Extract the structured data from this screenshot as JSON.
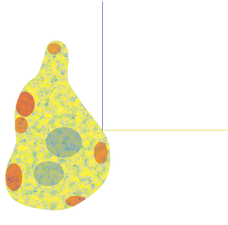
{
  "viewer": {
    "background": "#ffffff",
    "axes": {
      "vertical_axis_color": "#6a6ab8",
      "horizontal_axis_color": "#e8e066"
    },
    "surface": {
      "description_colors": [
        "#d81e1e",
        "#f08a1a",
        "#e8e030",
        "#6cc23c",
        "#3ab8d8",
        "#2a6ad0"
      ],
      "colormap_low": "#2a6ad0",
      "colormap_high": "#d81e1e"
    }
  }
}
